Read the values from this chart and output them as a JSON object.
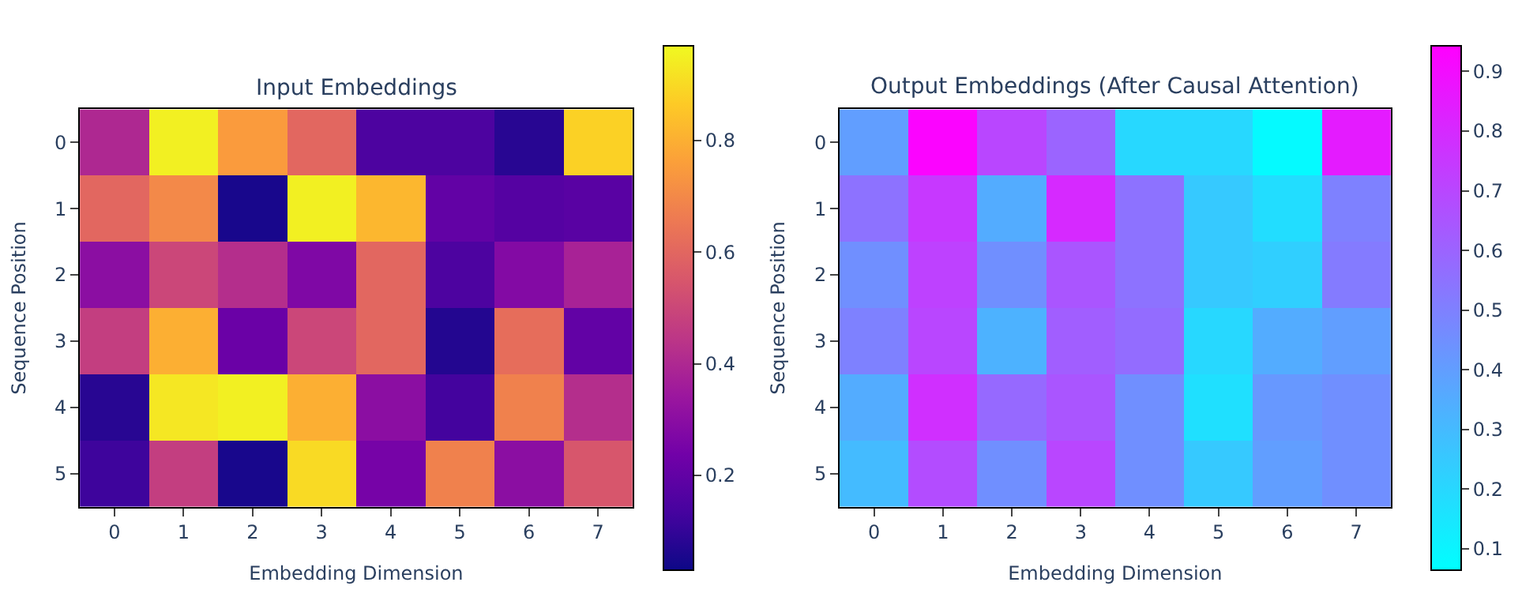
{
  "chart_data": [
    {
      "type": "heatmap",
      "title": "Input Embeddings",
      "xlabel": "Embedding Dimension",
      "ylabel": "Sequence Position",
      "categories": [
        "0",
        "1",
        "2",
        "3",
        "4",
        "5",
        "6",
        "7"
      ],
      "y_categories": [
        "0",
        "1",
        "2",
        "3",
        "4",
        "5"
      ],
      "cells": [
        [
          0.4,
          0.95,
          0.75,
          0.6,
          0.15,
          0.15,
          0.08,
          0.88
        ],
        [
          0.6,
          0.7,
          0.05,
          0.95,
          0.82,
          0.2,
          0.17,
          0.18
        ],
        [
          0.3,
          0.5,
          0.42,
          0.27,
          0.6,
          0.15,
          0.28,
          0.38
        ],
        [
          0.47,
          0.8,
          0.22,
          0.5,
          0.6,
          0.07,
          0.62,
          0.2
        ],
        [
          0.08,
          0.93,
          0.95,
          0.8,
          0.3,
          0.13,
          0.68,
          0.42
        ],
        [
          0.12,
          0.47,
          0.05,
          0.9,
          0.25,
          0.68,
          0.3,
          0.55
        ]
      ],
      "clim": [
        0.03,
        0.97
      ],
      "cticks": [
        0.2,
        0.4,
        0.6,
        0.8
      ]
    },
    {
      "type": "heatmap",
      "title": "Output Embeddings (After Causal Attention)",
      "xlabel": "Embedding Dimension",
      "ylabel": "Sequence Position",
      "categories": [
        "0",
        "1",
        "2",
        "3",
        "4",
        "5",
        "6",
        "7"
      ],
      "y_categories": [
        "0",
        "1",
        "2",
        "3",
        "4",
        "5"
      ],
      "cells": [
        [
          0.4,
          0.93,
          0.7,
          0.6,
          0.2,
          0.2,
          0.08,
          0.85
        ],
        [
          0.55,
          0.75,
          0.35,
          0.8,
          0.55,
          0.25,
          0.18,
          0.5
        ],
        [
          0.45,
          0.72,
          0.45,
          0.65,
          0.55,
          0.25,
          0.23,
          0.52
        ],
        [
          0.5,
          0.7,
          0.33,
          0.62,
          0.57,
          0.2,
          0.35,
          0.4
        ],
        [
          0.35,
          0.78,
          0.58,
          0.65,
          0.45,
          0.17,
          0.42,
          0.45
        ],
        [
          0.3,
          0.68,
          0.45,
          0.7,
          0.45,
          0.25,
          0.4,
          0.45
        ]
      ],
      "clim": [
        0.064,
        0.943
      ],
      "cticks": [
        0.1,
        0.2,
        0.3,
        0.4,
        0.5,
        0.6,
        0.7,
        0.8,
        0.9
      ]
    }
  ]
}
